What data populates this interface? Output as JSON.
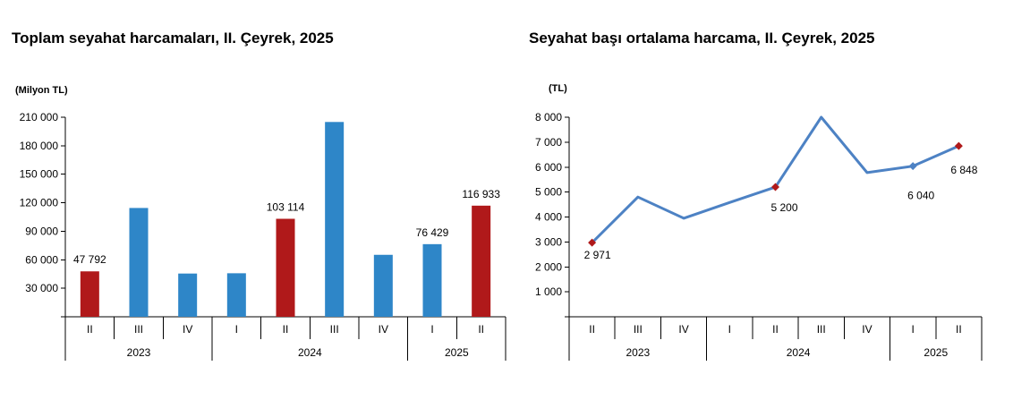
{
  "chart_data": [
    {
      "type": "bar",
      "title": "Toplam seyahat harcamaları, II. Çeyrek, 2025",
      "unit": "(Milyon TL)",
      "categories": [
        "II",
        "III",
        "IV",
        "I",
        "II",
        "III",
        "IV",
        "I",
        "II"
      ],
      "years": [
        {
          "label": "2023",
          "span": 3
        },
        {
          "label": "2024",
          "span": 4
        },
        {
          "label": "2025",
          "span": 2
        }
      ],
      "values": [
        47792,
        114500,
        45500,
        45800,
        103114,
        205000,
        65200,
        76429,
        116933
      ],
      "highlight": [
        true,
        false,
        false,
        false,
        true,
        false,
        false,
        false,
        true
      ],
      "data_labels": [
        "47 792",
        "",
        "",
        "",
        "103 114",
        "",
        "",
        "76 429",
        "116 933"
      ],
      "ylim": [
        0,
        210000
      ],
      "yticks": [
        0,
        30000,
        60000,
        90000,
        120000,
        150000,
        180000,
        210000
      ],
      "ytick_labels": [
        "",
        "30 000",
        "60 000",
        "90 000",
        "120 000",
        "150 000",
        "180 000",
        "210 000"
      ],
      "colors": {
        "base": "#2e86c8",
        "highlight": "#b0191a"
      },
      "grid": false
    },
    {
      "type": "line",
      "title": "Seyahat başı ortalama harcama, II. Çeyrek, 2025",
      "unit": "(TL)",
      "categories": [
        "II",
        "III",
        "IV",
        "I",
        "II",
        "III",
        "IV",
        "I",
        "II"
      ],
      "years": [
        {
          "label": "2023",
          "span": 3
        },
        {
          "label": "2024",
          "span": 4
        },
        {
          "label": "2025",
          "span": 2
        }
      ],
      "values": [
        2971,
        4800,
        3950,
        4580,
        5200,
        8000,
        5780,
        6040,
        6848
      ],
      "markers": [
        "red",
        "none",
        "none",
        "none",
        "red",
        "none",
        "none",
        "blue",
        "red"
      ],
      "data_labels": [
        "2 971",
        "",
        "",
        "",
        "5 200",
        "",
        "",
        "6 040",
        "6 848"
      ],
      "ylim": [
        0,
        8000
      ],
      "yticks": [
        0,
        1000,
        2000,
        3000,
        4000,
        5000,
        6000,
        7000,
        8000
      ],
      "ytick_labels": [
        "",
        "1 000",
        "2 000",
        "3 000",
        "4 000",
        "5 000",
        "6 000",
        "7 000",
        "8 000"
      ],
      "colors": {
        "line": "#4d82c4",
        "marker_red": "#b0191a",
        "marker_blue": "#4d82c4"
      },
      "grid": false
    }
  ]
}
